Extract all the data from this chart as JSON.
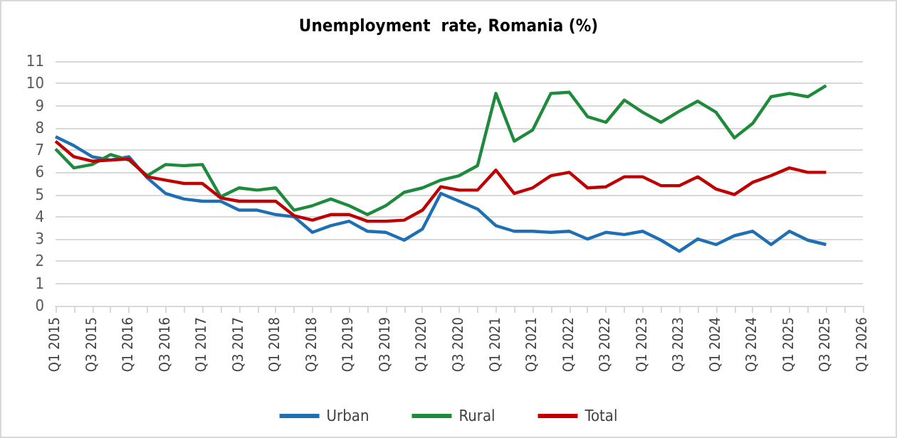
{
  "chart_data": {
    "type": "line",
    "title": "Unemployment  rate, Romania (%)",
    "categories": [
      "Q1 2015",
      null,
      "Q3 2015",
      null,
      "Q1 2016",
      null,
      "Q3 2016",
      null,
      "Q1 2017",
      null,
      "Q3 2017",
      null,
      "Q1 2018",
      null,
      "Q3 2018",
      null,
      "Q1 2019",
      null,
      "Q3 2019",
      null,
      "Q1 2020",
      null,
      "Q3 2020",
      null,
      "Q1 2021",
      null,
      "Q3 2021",
      null,
      "Q1 2022",
      null,
      "Q3 2022",
      null,
      "Q1 2023",
      null,
      "Q3 2023",
      null,
      "Q1 2024",
      null,
      "Q3 2024",
      null,
      "Q1 2025",
      null,
      "Q3 2025",
      null,
      "Q1 2026"
    ],
    "series": [
      {
        "name": "Urban",
        "color": "#1f6fb5",
        "values": [
          7.6,
          7.2,
          6.7,
          6.55,
          6.7,
          5.75,
          5.05,
          4.8,
          4.7,
          4.7,
          4.3,
          4.3,
          4.1,
          4.0,
          3.3,
          3.6,
          3.8,
          3.35,
          3.3,
          2.95,
          3.45,
          5.05,
          4.7,
          4.35,
          3.6,
          3.35,
          3.35,
          3.3,
          3.35,
          3.0,
          3.3,
          3.2,
          3.35,
          2.95,
          2.45,
          3.0,
          2.75,
          3.15,
          3.35,
          2.75,
          3.35,
          2.95,
          2.75,
          null,
          null
        ]
      },
      {
        "name": "Rural",
        "color": "#1e8a3c",
        "values": [
          7.05,
          6.2,
          6.35,
          6.8,
          6.55,
          5.85,
          6.35,
          6.3,
          6.35,
          4.9,
          5.3,
          5.2,
          5.3,
          4.3,
          4.5,
          4.8,
          4.5,
          4.1,
          4.5,
          5.1,
          5.3,
          5.65,
          5.85,
          6.3,
          9.55,
          7.4,
          7.9,
          9.55,
          9.6,
          8.5,
          8.25,
          9.25,
          8.7,
          8.25,
          8.75,
          9.2,
          8.7,
          7.55,
          8.2,
          9.4,
          9.55,
          9.4,
          9.9,
          null,
          null
        ]
      },
      {
        "name": "Total",
        "color": "#c00000",
        "values": [
          7.4,
          6.7,
          6.5,
          6.55,
          6.6,
          5.8,
          5.65,
          5.5,
          5.5,
          4.85,
          4.7,
          4.7,
          4.7,
          4.05,
          3.85,
          4.1,
          4.1,
          3.8,
          3.8,
          3.85,
          4.3,
          5.35,
          5.2,
          5.2,
          6.1,
          5.05,
          5.3,
          5.85,
          6.0,
          5.3,
          5.35,
          5.8,
          5.8,
          5.4,
          5.4,
          5.8,
          5.25,
          5.0,
          5.55,
          5.85,
          6.2,
          6.0,
          6.0,
          null,
          null
        ]
      }
    ],
    "ylim": [
      0,
      11
    ],
    "yticks": [
      0,
      1,
      2,
      3,
      4,
      5,
      6,
      7,
      8,
      9,
      10,
      11
    ],
    "grid": "y",
    "legend": "bottom",
    "marker": "none",
    "line_style": "solid"
  }
}
